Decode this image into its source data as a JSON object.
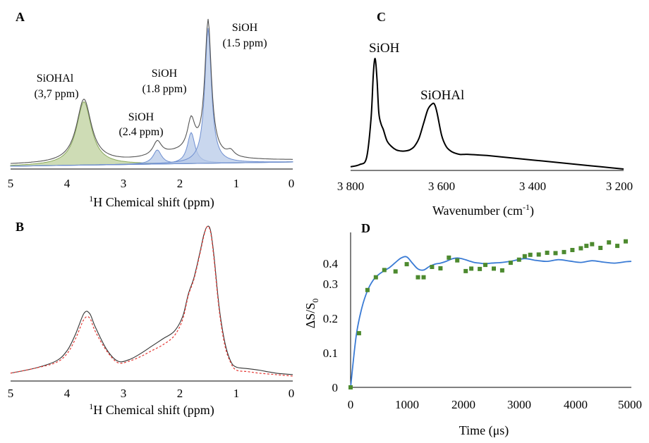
{
  "panels": {
    "A": {
      "label": "A",
      "x_ticks": [
        "5",
        "4",
        "3",
        "2",
        "1",
        "0"
      ],
      "x_label_sup": "1",
      "x_label": "H Chemical shift (ppm)",
      "annotations": [
        {
          "line1": "SiOHAl",
          "line2": "(3,7 ppm)"
        },
        {
          "line1": "SiOH",
          "line2": "(2.4 ppm)"
        },
        {
          "line1": "SiOH",
          "line2": "(1.8 ppm)"
        },
        {
          "line1": "SiOH",
          "line2": "(1.5 ppm)"
        }
      ]
    },
    "B": {
      "label": "B",
      "x_ticks": [
        "5",
        "4",
        "3",
        "2",
        "1",
        "0"
      ],
      "x_label_sup": "1",
      "x_label": "H Chemical shift (ppm)"
    },
    "C": {
      "label": "C",
      "x_ticks": [
        "3 800",
        "3 600",
        "3 400",
        "3 200"
      ],
      "x_label": "Wavenumber (cm",
      "x_label_sup": "-1",
      "x_label_end": ")",
      "annotations": [
        "SiOH",
        "SiOHAl"
      ]
    },
    "D": {
      "label": "D",
      "x_ticks": [
        "0",
        "1000",
        "2000",
        "3000",
        "4000",
        "5000"
      ],
      "y_ticks": [
        "0",
        "0.1",
        "0.2",
        "0.3",
        "0.4"
      ],
      "x_label": "Time (μs)",
      "y_label_main": "ΔS/S",
      "y_label_sub": "0"
    }
  },
  "colors": {
    "green_fill": "#c5d6a8",
    "green_line": "#8aa85c",
    "blue_fill": "#b7c9e8",
    "blue_line": "#6f8fd0",
    "red": "#e53935",
    "fit_blue": "#3a7bd5",
    "marker_green": "#4d8a2f"
  },
  "chart_data": [
    {
      "panel": "A",
      "type": "line",
      "xlabel": "1H Chemical shift (ppm)",
      "xlim": [
        5,
        0
      ],
      "x_reversed": true,
      "series": [
        {
          "component": "SiOHAl",
          "center_ppm": 3.7,
          "height": 0.45,
          "width": 0.32,
          "fill": "green"
        },
        {
          "component": "SiOH",
          "center_ppm": 2.4,
          "height": 0.1,
          "width": 0.18,
          "fill": "blue"
        },
        {
          "component": "SiOH",
          "center_ppm": 1.8,
          "height": 0.22,
          "width": 0.16,
          "fill": "blue"
        },
        {
          "component": "SiOH",
          "center_ppm": 1.5,
          "height": 0.96,
          "width": 0.14,
          "fill": "blue"
        }
      ]
    },
    {
      "panel": "B",
      "type": "line",
      "xlabel": "1H Chemical shift (ppm)",
      "xlim": [
        5,
        0
      ],
      "x_reversed": true,
      "series": [
        {
          "style": "solid",
          "x": [
            5,
            4.6,
            4.2,
            4.0,
            3.85,
            3.7,
            3.6,
            3.5,
            3.3,
            3.1,
            2.9,
            2.7,
            2.5,
            2.3,
            2.1,
            1.95,
            1.85,
            1.75,
            1.65,
            1.58,
            1.52,
            1.46,
            1.4,
            1.3,
            1.2,
            1.1,
            1.0,
            0.8,
            0.6,
            0.3,
            0
          ],
          "y": [
            0.02,
            0.05,
            0.1,
            0.17,
            0.28,
            0.42,
            0.42,
            0.33,
            0.18,
            0.1,
            0.11,
            0.15,
            0.2,
            0.25,
            0.3,
            0.4,
            0.55,
            0.66,
            0.82,
            0.94,
            1.0,
            0.98,
            0.82,
            0.45,
            0.22,
            0.1,
            0.06,
            0.05,
            0.04,
            0.02,
            0.01
          ]
        },
        {
          "style": "dotted",
          "x": [
            5,
            4.6,
            4.2,
            4.0,
            3.85,
            3.7,
            3.6,
            3.5,
            3.3,
            3.1,
            2.9,
            2.7,
            2.5,
            2.3,
            2.1,
            1.95,
            1.85,
            1.75,
            1.65,
            1.58,
            1.52,
            1.46,
            1.4,
            1.3,
            1.2,
            1.1,
            1.0,
            0.8,
            0.6,
            0.3,
            0
          ],
          "y": [
            0.02,
            0.05,
            0.09,
            0.15,
            0.25,
            0.38,
            0.39,
            0.3,
            0.17,
            0.09,
            0.1,
            0.13,
            0.17,
            0.21,
            0.27,
            0.38,
            0.54,
            0.65,
            0.81,
            0.93,
            1.0,
            0.97,
            0.8,
            0.43,
            0.2,
            0.09,
            0.04,
            0.03,
            0.02,
            0.01,
            0.0
          ]
        }
      ]
    },
    {
      "panel": "C",
      "type": "line",
      "xlabel": "Wavenumber (cm-1)",
      "xlim": [
        3800,
        3200
      ],
      "x_reversed": true,
      "series": [
        {
          "x": [
            3800,
            3780,
            3765,
            3755,
            3750,
            3746,
            3742,
            3738,
            3733,
            3728,
            3720,
            3710,
            3700,
            3690,
            3680,
            3670,
            3660,
            3650,
            3640,
            3630,
            3620,
            3615,
            3610,
            3600,
            3590,
            3580,
            3570,
            3560,
            3550,
            3540,
            3520,
            3500,
            3450,
            3400,
            3350,
            3300,
            3250,
            3200
          ],
          "y": [
            0.02,
            0.04,
            0.1,
            0.45,
            0.85,
            0.98,
            0.8,
            0.5,
            0.4,
            0.35,
            0.25,
            0.2,
            0.17,
            0.16,
            0.16,
            0.17,
            0.2,
            0.27,
            0.4,
            0.53,
            0.58,
            0.57,
            0.5,
            0.3,
            0.2,
            0.16,
            0.14,
            0.13,
            0.13,
            0.13,
            0.125,
            0.12,
            0.1,
            0.08,
            0.06,
            0.04,
            0.02,
            0.0
          ]
        }
      ]
    },
    {
      "panel": "D",
      "type": "scatter",
      "xlabel": "Time (μs)",
      "ylabel": "ΔS/S0",
      "xlim": [
        0,
        5000
      ],
      "ylim": [
        0,
        0.45
      ],
      "series": [
        {
          "kind": "markers",
          "x": [
            0,
            150,
            300,
            450,
            600,
            800,
            1000,
            1200,
            1300,
            1450,
            1600,
            1750,
            1900,
            2050,
            2150,
            2300,
            2400,
            2550,
            2700,
            2850,
            3000,
            3100,
            3200,
            3350,
            3500,
            3650,
            3800,
            3950,
            4100,
            4200,
            4300,
            4450,
            4600,
            4750,
            4900
          ],
          "y": [
            0.0,
            0.157,
            0.282,
            0.319,
            0.34,
            0.336,
            0.357,
            0.319,
            0.319,
            0.349,
            0.345,
            0.376,
            0.368,
            0.337,
            0.344,
            0.343,
            0.355,
            0.344,
            0.339,
            0.361,
            0.37,
            0.38,
            0.384,
            0.385,
            0.39,
            0.389,
            0.392,
            0.398,
            0.403,
            0.41,
            0.415,
            0.404,
            0.42,
            0.41,
            0.423
          ]
        },
        {
          "kind": "fit",
          "x": [
            0,
            100,
            200,
            300,
            400,
            500,
            600,
            700,
            800,
            900,
            1000,
            1100,
            1200,
            1300,
            1400,
            1500,
            1600,
            1700,
            1800,
            1900,
            2000,
            2100,
            2200,
            2300,
            2400,
            2500,
            2700,
            2900,
            3100,
            3300,
            3500,
            3700,
            3900,
            4100,
            4300,
            4500,
            4700,
            4900,
            5000
          ],
          "y": [
            0,
            0.15,
            0.23,
            0.28,
            0.31,
            0.327,
            0.338,
            0.348,
            0.362,
            0.375,
            0.378,
            0.36,
            0.343,
            0.34,
            0.35,
            0.357,
            0.36,
            0.365,
            0.372,
            0.375,
            0.372,
            0.367,
            0.362,
            0.36,
            0.358,
            0.36,
            0.362,
            0.367,
            0.373,
            0.368,
            0.365,
            0.37,
            0.366,
            0.362,
            0.367,
            0.363,
            0.36,
            0.364,
            0.365
          ]
        }
      ]
    }
  ]
}
